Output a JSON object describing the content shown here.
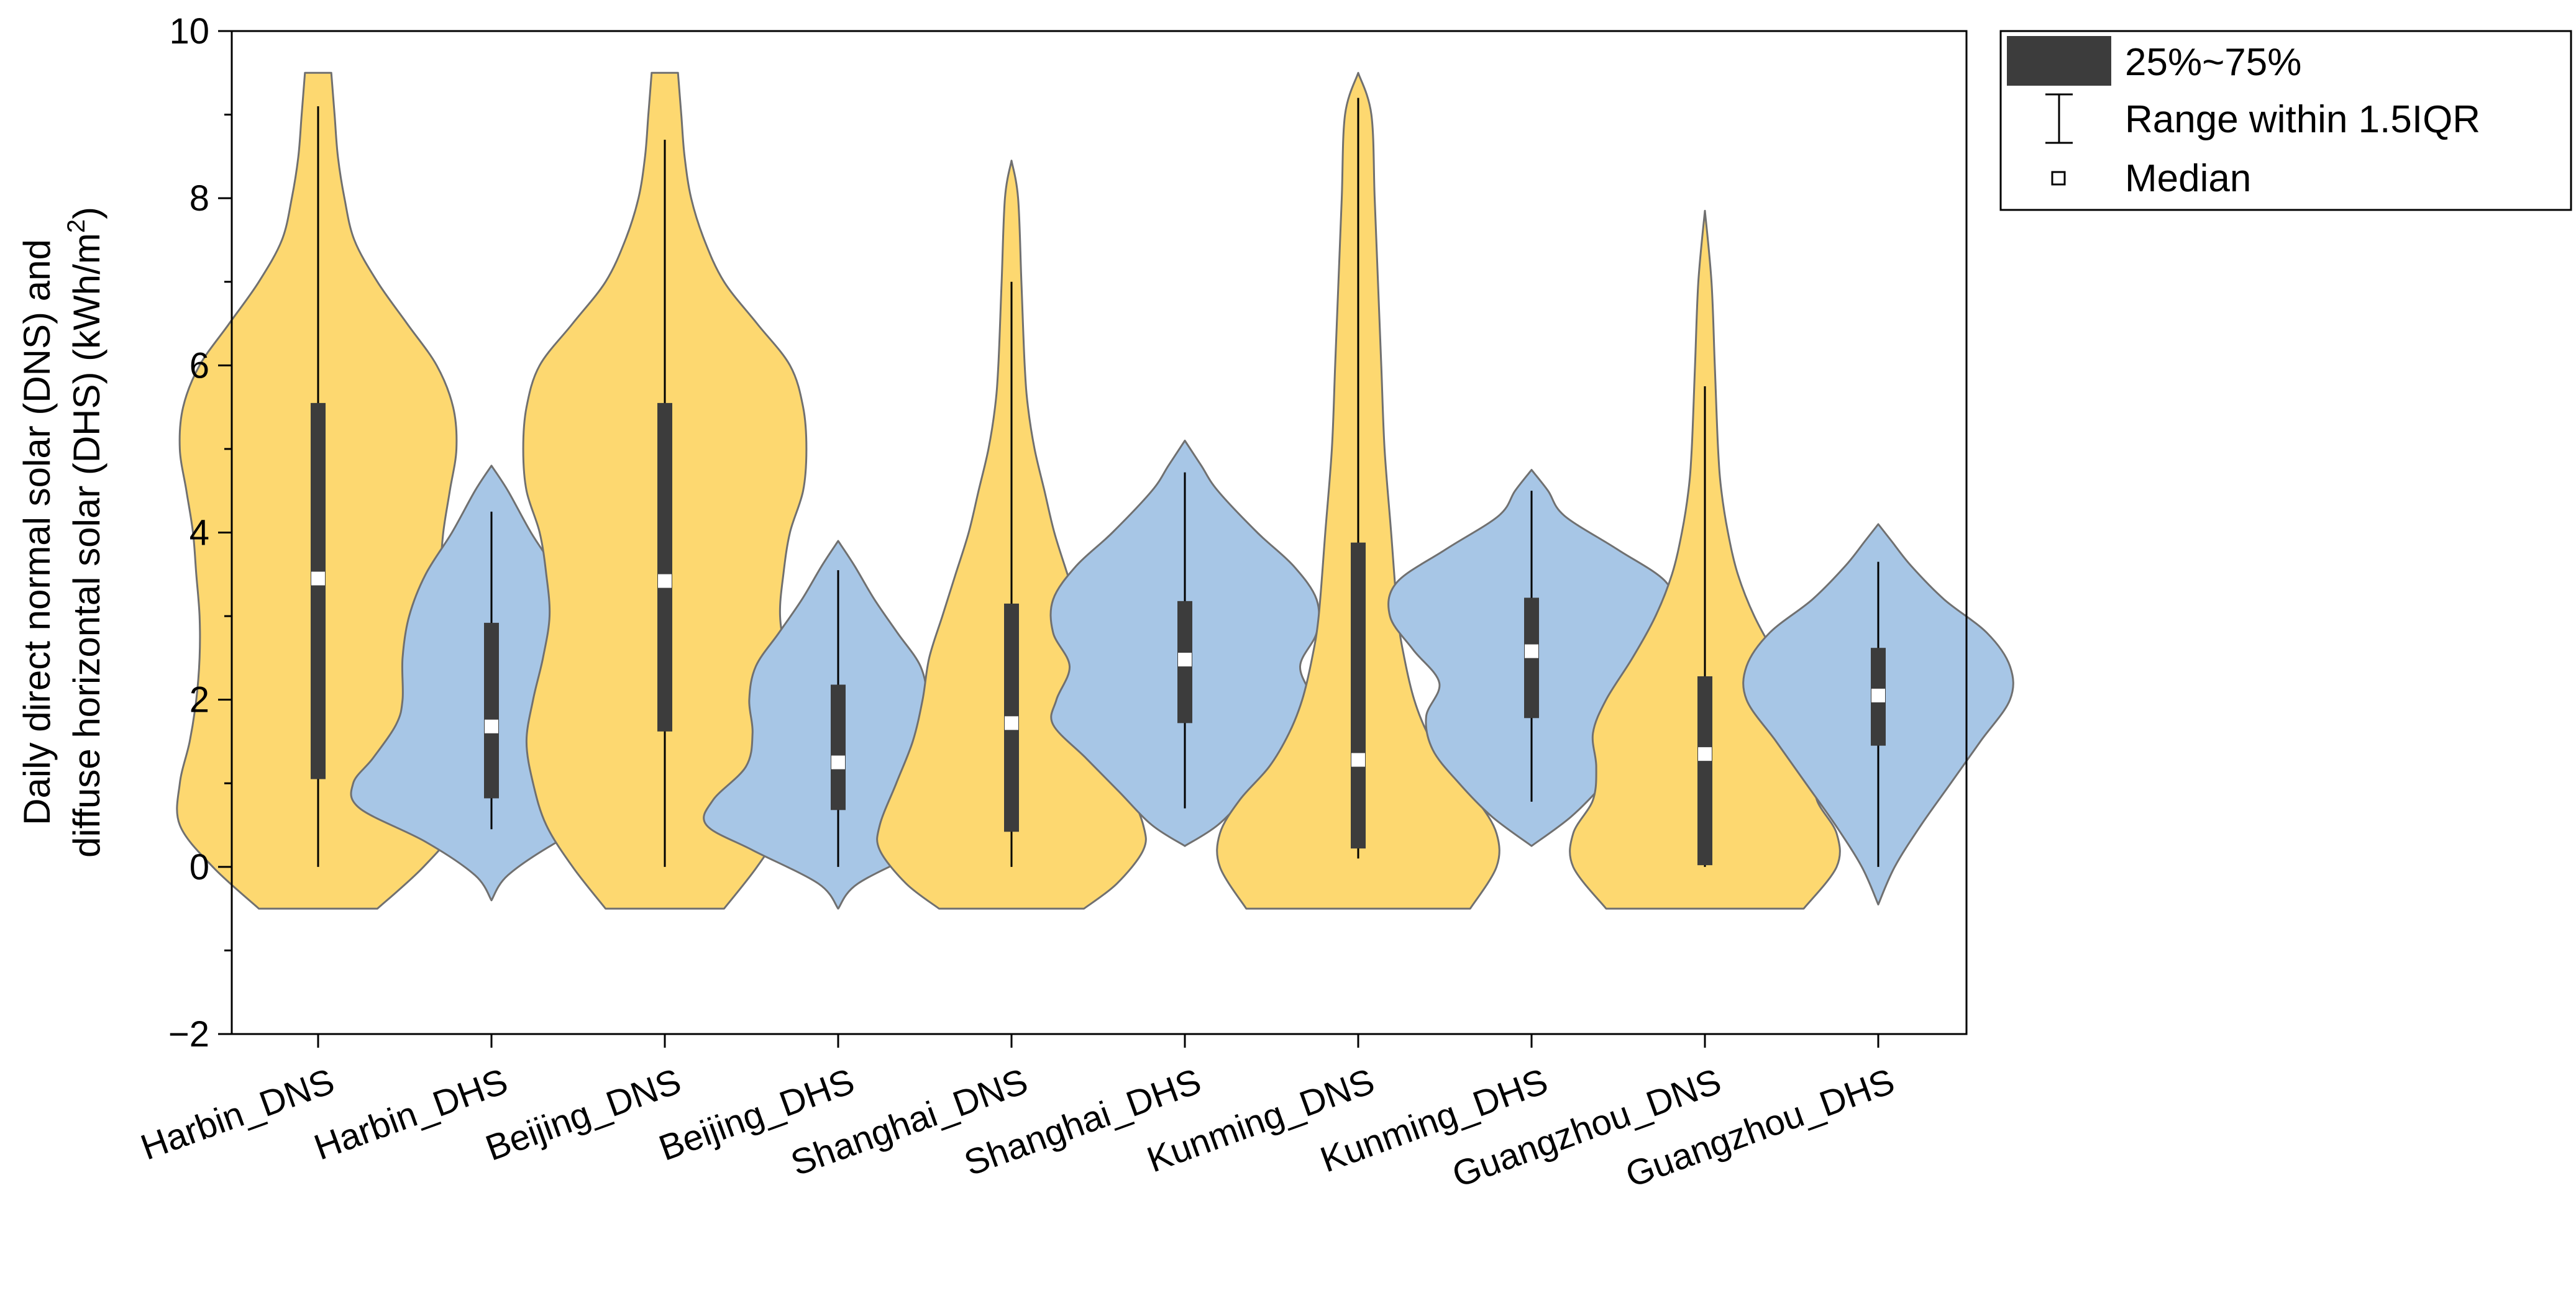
{
  "chart_data": {
    "type": "violin",
    "title": "",
    "ylabel_line1": "Daily direct normal solar (DNS) and",
    "ylabel_line2_prefix": "diffuse horizontal solar (DHS) (kWh/m",
    "ylabel_superscript": "2",
    "ylabel_suffix": ")",
    "ylim": [
      -2,
      10
    ],
    "yticks": [
      -2,
      0,
      2,
      4,
      6,
      8,
      10
    ],
    "ytick_labels": [
      "−2",
      "0",
      "2",
      "4",
      "6",
      "8",
      "10"
    ],
    "colors": {
      "DNS": "#fdd870",
      "DHS": "#a7c6e6",
      "box": "#3c3c3c",
      "median": "#ffffff",
      "outline": "#707070"
    },
    "legend": {
      "iqr_label": "25%~75%",
      "whisker_label": "Range within 1.5IQR",
      "median_label": "Median"
    },
    "categories": [
      "Harbin_DNS",
      "Harbin_DHS",
      "Beijing_DNS",
      "Beijing_DHS",
      "Shanghai_DNS",
      "Shanghai_DHS",
      "Kunming_DNS",
      "Kunming_DHS",
      "Guangzhou_DNS",
      "Guangzhou_DHS"
    ],
    "series": [
      {
        "name": "Harbin_DNS",
        "kind": "DNS",
        "min": 0,
        "q1": 1.05,
        "median": 3.45,
        "q3": 5.55,
        "whisker_max": 9.1,
        "density": [
          [
            -0.5,
            0.18
          ],
          [
            0,
            0.32
          ],
          [
            0.5,
            0.42
          ],
          [
            1,
            0.42
          ],
          [
            1.5,
            0.39
          ],
          [
            2,
            0.37
          ],
          [
            2.5,
            0.36
          ],
          [
            3,
            0.36
          ],
          [
            3.5,
            0.37
          ],
          [
            4,
            0.38
          ],
          [
            4.5,
            0.4
          ],
          [
            5,
            0.42
          ],
          [
            5.5,
            0.41
          ],
          [
            6,
            0.36
          ],
          [
            6.5,
            0.27
          ],
          [
            7,
            0.18
          ],
          [
            7.5,
            0.11
          ],
          [
            8,
            0.08
          ],
          [
            8.5,
            0.06
          ],
          [
            9,
            0.05
          ],
          [
            9.5,
            0.04
          ]
        ]
      },
      {
        "name": "Harbin_DHS",
        "kind": "DHS",
        "min": 0.45,
        "q1": 0.82,
        "median": 1.68,
        "q3": 2.92,
        "whisker_max": 4.25,
        "density": [
          [
            -0.4,
            0
          ],
          [
            -0.1,
            0.05
          ],
          [
            0.3,
            0.2
          ],
          [
            0.7,
            0.4
          ],
          [
            1,
            0.42
          ],
          [
            1.3,
            0.36
          ],
          [
            1.7,
            0.29
          ],
          [
            2,
            0.27
          ],
          [
            2.5,
            0.27
          ],
          [
            3,
            0.25
          ],
          [
            3.5,
            0.2
          ],
          [
            4,
            0.12
          ],
          [
            4.5,
            0.05
          ],
          [
            4.8,
            0
          ]
        ]
      },
      {
        "name": "Beijing_DNS",
        "kind": "DNS",
        "min": 0,
        "q1": 1.62,
        "median": 3.42,
        "q3": 5.55,
        "whisker_max": 8.7,
        "density": [
          [
            -0.5,
            0.18
          ],
          [
            0,
            0.28
          ],
          [
            0.5,
            0.36
          ],
          [
            1,
            0.4
          ],
          [
            1.5,
            0.42
          ],
          [
            2,
            0.4
          ],
          [
            2.5,
            0.37
          ],
          [
            3,
            0.35
          ],
          [
            3.5,
            0.36
          ],
          [
            4,
            0.38
          ],
          [
            4.5,
            0.42
          ],
          [
            5,
            0.43
          ],
          [
            5.5,
            0.42
          ],
          [
            6,
            0.38
          ],
          [
            6.5,
            0.28
          ],
          [
            7,
            0.18
          ],
          [
            7.5,
            0.12
          ],
          [
            8,
            0.08
          ],
          [
            8.5,
            0.06
          ],
          [
            9,
            0.05
          ],
          [
            9.5,
            0.04
          ]
        ]
      },
      {
        "name": "Beijing_DHS",
        "kind": "DHS",
        "min": 0,
        "q1": 0.68,
        "median": 1.25,
        "q3": 2.18,
        "whisker_max": 3.55,
        "density": [
          [
            -0.5,
            0
          ],
          [
            -0.2,
            0.06
          ],
          [
            0.2,
            0.26
          ],
          [
            0.5,
            0.4
          ],
          [
            0.8,
            0.38
          ],
          [
            1.2,
            0.28
          ],
          [
            1.6,
            0.26
          ],
          [
            2,
            0.27
          ],
          [
            2.4,
            0.25
          ],
          [
            2.8,
            0.18
          ],
          [
            3.2,
            0.11
          ],
          [
            3.6,
            0.05
          ],
          [
            3.9,
            0
          ]
        ]
      },
      {
        "name": "Shanghai_DNS",
        "kind": "DNS",
        "min": 0,
        "q1": 0.42,
        "median": 1.72,
        "q3": 3.15,
        "whisker_max": 7.0,
        "density": [
          [
            -0.5,
            0.22
          ],
          [
            -0.2,
            0.32
          ],
          [
            0.2,
            0.4
          ],
          [
            0.5,
            0.4
          ],
          [
            1,
            0.35
          ],
          [
            1.5,
            0.3
          ],
          [
            2,
            0.27
          ],
          [
            2.5,
            0.25
          ],
          [
            3,
            0.21
          ],
          [
            3.5,
            0.17
          ],
          [
            4,
            0.13
          ],
          [
            4.5,
            0.1
          ],
          [
            5,
            0.07
          ],
          [
            5.5,
            0.05
          ],
          [
            6,
            0.04
          ],
          [
            7,
            0.03
          ],
          [
            8,
            0.02
          ],
          [
            8.45,
            0
          ]
        ]
      },
      {
        "name": "Shanghai_DHS",
        "kind": "DHS",
        "min": 0.7,
        "q1": 1.72,
        "median": 2.48,
        "q3": 3.18,
        "whisker_max": 4.72,
        "density": [
          [
            0.25,
            0
          ],
          [
            0.5,
            0.1
          ],
          [
            0.9,
            0.2
          ],
          [
            1.3,
            0.3
          ],
          [
            1.7,
            0.4
          ],
          [
            2,
            0.39
          ],
          [
            2.4,
            0.35
          ],
          [
            2.8,
            0.4
          ],
          [
            3.2,
            0.4
          ],
          [
            3.6,
            0.33
          ],
          [
            4,
            0.22
          ],
          [
            4.5,
            0.1
          ],
          [
            4.8,
            0.05
          ],
          [
            5.1,
            0
          ]
        ]
      },
      {
        "name": "Kunming_DNS",
        "kind": "DNS",
        "min": 0.1,
        "q1": 0.22,
        "median": 1.28,
        "q3": 3.88,
        "whisker_max": 9.2,
        "density": [
          [
            -0.5,
            0.34
          ],
          [
            0,
            0.42
          ],
          [
            0.4,
            0.42
          ],
          [
            0.8,
            0.36
          ],
          [
            1.2,
            0.27
          ],
          [
            1.6,
            0.21
          ],
          [
            2,
            0.17
          ],
          [
            2.5,
            0.14
          ],
          [
            3,
            0.12
          ],
          [
            4,
            0.1
          ],
          [
            5,
            0.08
          ],
          [
            6,
            0.07
          ],
          [
            7,
            0.06
          ],
          [
            8,
            0.05
          ],
          [
            9,
            0.04
          ],
          [
            9.5,
            0
          ]
        ]
      },
      {
        "name": "Kunming_DHS",
        "kind": "DHS",
        "min": 0.78,
        "q1": 1.78,
        "median": 2.58,
        "q3": 3.22,
        "whisker_max": 4.5,
        "density": [
          [
            0.25,
            0
          ],
          [
            0.6,
            0.12
          ],
          [
            1,
            0.22
          ],
          [
            1.4,
            0.3
          ],
          [
            1.8,
            0.32
          ],
          [
            2.2,
            0.28
          ],
          [
            2.6,
            0.36
          ],
          [
            3,
            0.43
          ],
          [
            3.4,
            0.41
          ],
          [
            3.8,
            0.26
          ],
          [
            4.2,
            0.1
          ],
          [
            4.5,
            0.05
          ],
          [
            4.75,
            0
          ]
        ]
      },
      {
        "name": "Guangzhou_DNS",
        "kind": "DNS",
        "min": 0,
        "q1": 0.02,
        "median": 1.35,
        "q3": 2.28,
        "whisker_max": 5.75,
        "density": [
          [
            -0.5,
            0.3
          ],
          [
            0,
            0.4
          ],
          [
            0.4,
            0.4
          ],
          [
            0.8,
            0.34
          ],
          [
            1.2,
            0.33
          ],
          [
            1.6,
            0.34
          ],
          [
            2,
            0.3
          ],
          [
            2.5,
            0.22
          ],
          [
            3,
            0.15
          ],
          [
            3.5,
            0.1
          ],
          [
            4,
            0.07
          ],
          [
            4.5,
            0.05
          ],
          [
            5,
            0.04
          ],
          [
            6,
            0.03
          ],
          [
            7,
            0.02
          ],
          [
            7.85,
            0
          ]
        ]
      },
      {
        "name": "Guangzhou_DHS",
        "kind": "DHS",
        "min": 0,
        "q1": 1.45,
        "median": 2.05,
        "q3": 2.62,
        "whisker_max": 3.65,
        "density": [
          [
            -0.45,
            0
          ],
          [
            0,
            0.05
          ],
          [
            0.5,
            0.13
          ],
          [
            1,
            0.22
          ],
          [
            1.5,
            0.31
          ],
          [
            2,
            0.4
          ],
          [
            2.4,
            0.4
          ],
          [
            2.8,
            0.33
          ],
          [
            3.2,
            0.2
          ],
          [
            3.6,
            0.1
          ],
          [
            3.9,
            0.04
          ],
          [
            4.1,
            0
          ]
        ]
      }
    ]
  }
}
